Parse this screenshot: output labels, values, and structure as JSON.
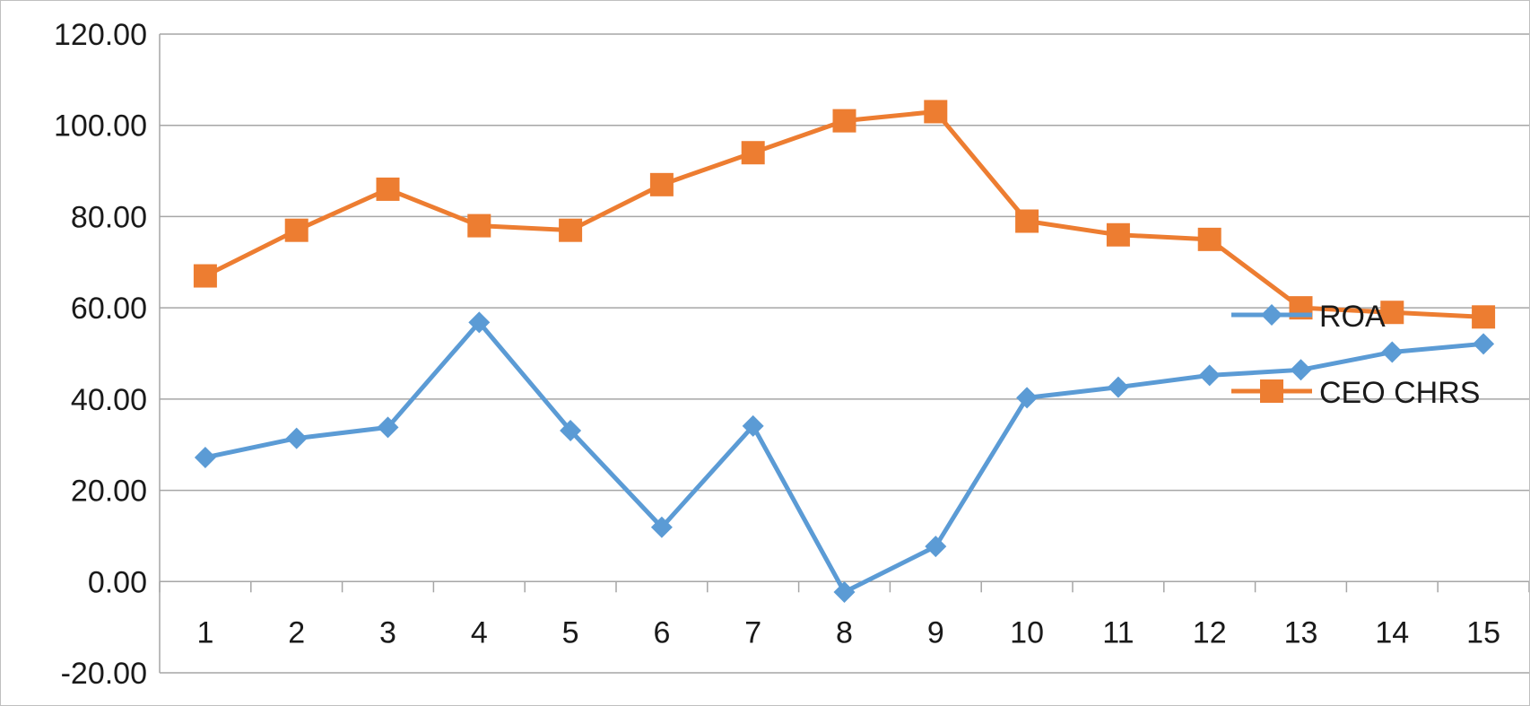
{
  "chart_data": {
    "type": "line",
    "title": "",
    "xlabel": "",
    "ylabel": "",
    "categories": [
      "1",
      "2",
      "3",
      "4",
      "5",
      "6",
      "7",
      "8",
      "9",
      "10",
      "11",
      "12",
      "13",
      "14",
      "15"
    ],
    "ylim": [
      -20,
      120
    ],
    "yticks": [
      "-20.00",
      "0.00",
      "20.00",
      "40.00",
      "60.00",
      "80.00",
      "100.00",
      "120.00"
    ],
    "ytick_values": [
      -20,
      0,
      20,
      40,
      60,
      80,
      100,
      120
    ],
    "grid": true,
    "legend": "right",
    "series": [
      {
        "name": "ROA",
        "color": "#5b9bd5",
        "marker": "diamond",
        "values": [
          27.2,
          31.4,
          33.8,
          56.8,
          33.1,
          11.9,
          34.1,
          -2.3,
          7.7,
          40.3,
          42.6,
          45.2,
          46.4,
          50.3,
          52.1
        ]
      },
      {
        "name": "CEO CHRS",
        "color": "#ed7d31",
        "marker": "square",
        "values": [
          67.0,
          77.0,
          86.0,
          78.0,
          77.0,
          87.0,
          94.0,
          101.0,
          103.0,
          79.0,
          76.0,
          75.0,
          60.0,
          59.0,
          58.0
        ]
      }
    ]
  }
}
